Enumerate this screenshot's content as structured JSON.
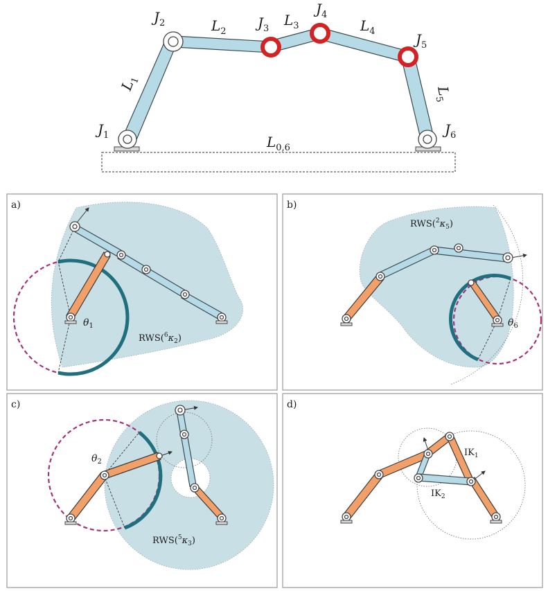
{
  "top": {
    "joints": [
      "J",
      "J",
      "J",
      "J",
      "J",
      "J"
    ],
    "joint_subs": [
      "1",
      "2",
      "3",
      "4",
      "5",
      "6"
    ],
    "links": [
      "L",
      "L",
      "L",
      "L",
      "L"
    ],
    "link_subs": [
      "1",
      "2",
      "3",
      "4",
      "5"
    ],
    "ground_link": "L",
    "ground_sub": "0,6"
  },
  "panels": {
    "a": {
      "tag": "a)",
      "angle": "θ",
      "angle_sub": "1",
      "rws_pre": "RWS(",
      "rws_sup": "6",
      "rws_k": "κ",
      "rws_sub": "2",
      "rws_post": ")"
    },
    "b": {
      "tag": "b)",
      "angle": "θ",
      "angle_sub": "6",
      "rws_pre": "RWS(",
      "rws_sup": "2",
      "rws_k": "κ",
      "rws_sub": "5",
      "rws_post": ")"
    },
    "c": {
      "tag": "c)",
      "angle": "θ",
      "angle_sub": "2",
      "rws_pre": "RWS(",
      "rws_sup": "5",
      "rws_k": "κ",
      "rws_sub": "3",
      "rws_post": ")"
    },
    "d": {
      "tag": "d)",
      "ik1": "IK",
      "ik1_sub": "1",
      "ik2": "IK",
      "ik2_sub": "2"
    }
  },
  "colors": {
    "link_blue": "#b7dbe6",
    "link_orange": "#f2a06a",
    "active_joint": "#d42222",
    "arc": "#1f6f7e",
    "dashed_circle": "#a0337a",
    "region": "#c9dfe6"
  }
}
